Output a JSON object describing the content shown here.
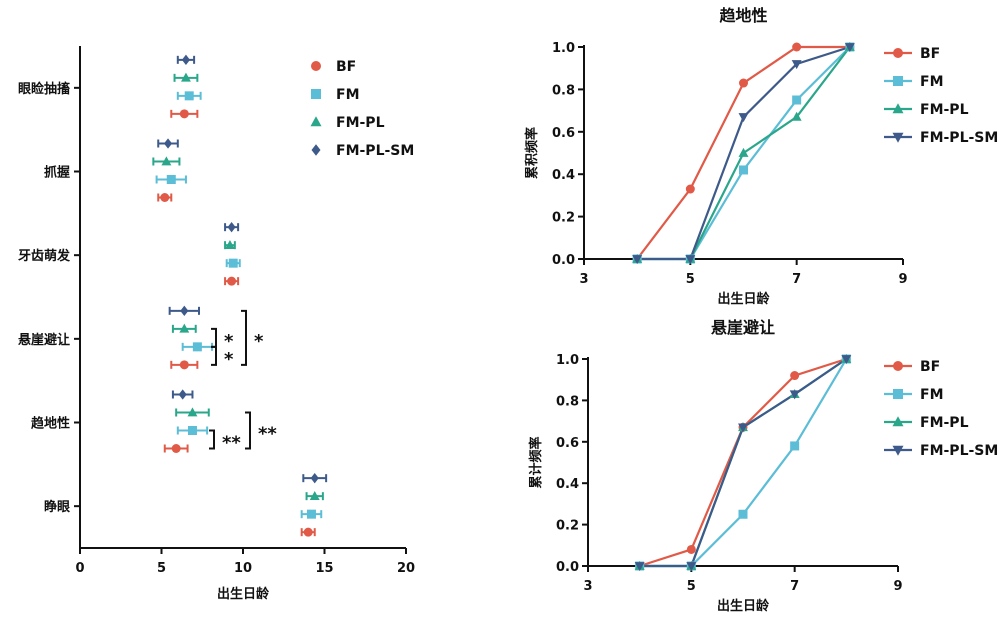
{
  "colors": {
    "BF": "#e05a47",
    "FM": "#5bbdd6",
    "FM-PL": "#2aa68a",
    "FM-PL-SM": "#3d5a8a"
  },
  "chart_data": [
    {
      "type": "scatter",
      "orientation": "horizontal",
      "xlabel": "出生日龄",
      "xlim": [
        0,
        20
      ],
      "xticks": [
        "0",
        "5",
        "10",
        "15",
        "20"
      ],
      "categories": [
        "眼睑抽搐",
        "抓握",
        "牙齿萌发",
        "悬崖避让",
        "趋地性",
        "睁眼"
      ],
      "series": [
        {
          "name": "BF",
          "marker": "circle",
          "means": [
            6.4,
            5.2,
            9.3,
            6.4,
            5.9,
            14.0
          ],
          "errors": [
            0.8,
            0.4,
            0.4,
            0.8,
            0.7,
            0.4
          ]
        },
        {
          "name": "FM",
          "marker": "square",
          "means": [
            6.7,
            5.6,
            9.4,
            7.2,
            6.9,
            14.2
          ],
          "errors": [
            0.7,
            0.9,
            0.4,
            0.9,
            0.9,
            0.6
          ]
        },
        {
          "name": "FM-PL",
          "marker": "triangle",
          "means": [
            6.5,
            5.3,
            9.2,
            6.4,
            6.9,
            14.4
          ],
          "errors": [
            0.7,
            0.8,
            0.3,
            0.7,
            1.0,
            0.5
          ]
        },
        {
          "name": "FM-PL-SM",
          "marker": "diamond",
          "means": [
            6.5,
            5.4,
            9.3,
            6.4,
            6.3,
            14.4
          ],
          "errors": [
            0.5,
            0.6,
            0.4,
            0.9,
            0.6,
            0.7
          ]
        }
      ],
      "annotations": [
        {
          "category": "悬崖避让",
          "pair": [
            "FM-PL",
            "FM"
          ],
          "label": "*"
        },
        {
          "category": "悬崖避让",
          "pair": [
            "FM",
            "BF"
          ],
          "label": "*"
        },
        {
          "category": "悬崖避让",
          "pair": [
            "FM-PL-SM",
            "BF"
          ],
          "label": "*"
        },
        {
          "category": "趋地性",
          "pair": [
            "FM",
            "BF"
          ],
          "label": "**"
        },
        {
          "category": "趋地性",
          "pair": [
            "FM-PL",
            "BF"
          ],
          "label": "**"
        }
      ],
      "legend": {
        "entries": [
          "BF",
          "FM",
          "FM-PL",
          "FM-PL-SM"
        ],
        "position": "top-right"
      }
    },
    {
      "type": "line",
      "title": "趋地性",
      "xlabel": "出生日龄",
      "ylabel": "累积频率",
      "xlim": [
        3,
        9
      ],
      "ylim": [
        0,
        1.0
      ],
      "xticks": [
        "3",
        "5",
        "7",
        "9"
      ],
      "yticks": [
        "0.0",
        "0.2",
        "0.4",
        "0.6",
        "0.8",
        "1.0"
      ],
      "x": [
        4,
        5,
        6,
        7,
        8
      ],
      "series": [
        {
          "name": "BF",
          "marker": "circle",
          "values": [
            0,
            0.33,
            0.83,
            1.0,
            1.0
          ]
        },
        {
          "name": "FM",
          "marker": "square",
          "values": [
            0,
            0,
            0.42,
            0.75,
            1.0
          ]
        },
        {
          "name": "FM-PL",
          "marker": "triangle",
          "values": [
            0,
            0,
            0.5,
            0.67,
            1.0
          ]
        },
        {
          "name": "FM-PL-SM",
          "marker": "triangle-down",
          "values": [
            0,
            0,
            0.67,
            0.92,
            1.0
          ]
        }
      ],
      "legend": {
        "entries": [
          "BF",
          "FM",
          "FM-PL",
          "FM-PL-SM"
        ],
        "position": "right"
      }
    },
    {
      "type": "line",
      "title": "悬崖避让",
      "xlabel": "出生日龄",
      "ylabel": "累计频率",
      "xlim": [
        3,
        9
      ],
      "ylim": [
        0,
        1.0
      ],
      "xticks": [
        "3",
        "5",
        "7",
        "9"
      ],
      "yticks": [
        "0.0",
        "0.2",
        "0.4",
        "0.6",
        "0.8",
        "1.0"
      ],
      "x": [
        4,
        5,
        6,
        7,
        8
      ],
      "series": [
        {
          "name": "BF",
          "marker": "circle",
          "values": [
            0,
            0.08,
            0.67,
            0.92,
            1.0
          ]
        },
        {
          "name": "FM",
          "marker": "square",
          "values": [
            0,
            0,
            0.25,
            0.58,
            1.0
          ]
        },
        {
          "name": "FM-PL",
          "marker": "triangle",
          "values": [
            0,
            0,
            0.67,
            0.83,
            1.0
          ]
        },
        {
          "name": "FM-PL-SM",
          "marker": "triangle-down",
          "values": [
            0,
            0,
            0.67,
            0.83,
            1.0
          ]
        }
      ],
      "legend": {
        "entries": [
          "BF",
          "FM",
          "FM-PL",
          "FM-PL-SM"
        ],
        "position": "right"
      }
    }
  ]
}
